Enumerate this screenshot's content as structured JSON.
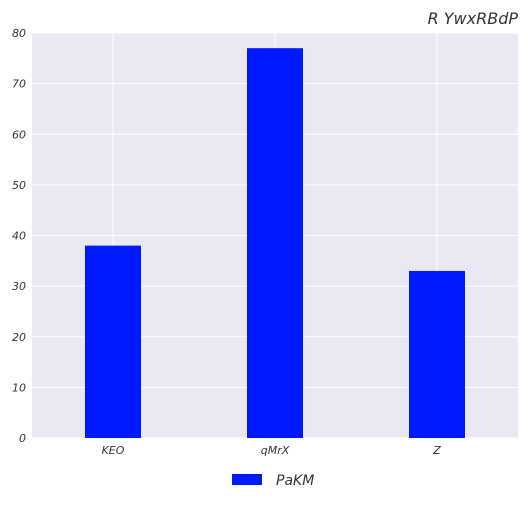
{
  "chart_data": {
    "type": "bar",
    "title": "R YwxRBdP",
    "xlabel": "",
    "ylabel": "",
    "categories": [
      "KEO",
      "qMrX",
      "Z"
    ],
    "series": [
      {
        "name": "PaKM",
        "values": [
          38,
          77,
          33
        ],
        "color": "#0019ff"
      }
    ],
    "ylim": [
      0,
      80
    ],
    "yticks": [
      0,
      10,
      20,
      30,
      40,
      50,
      60,
      70,
      80
    ],
    "grid": true,
    "plot_background": "#e8e9f2",
    "grid_color": "#ffffff",
    "legend_position": "bottom-center"
  }
}
